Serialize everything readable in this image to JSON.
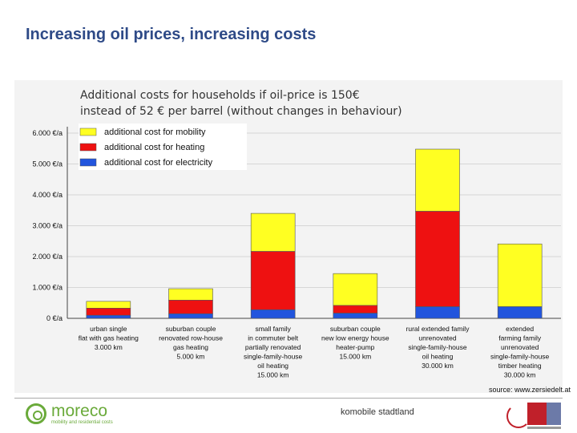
{
  "page": {
    "title": "Increasing oil prices, increasing costs",
    "source": "source: www.zersiedelt.at",
    "footer_center": "komobile stadtland",
    "logo_name": "moreco",
    "logo_tagline": "mobility and residential costs"
  },
  "chart_data": {
    "type": "bar",
    "stacked": true,
    "title_lines": [
      "Additional costs for households if oil-price is 150€",
      "instead of 52 € per barrel (without changes in behaviour)"
    ],
    "categories": [
      [
        "urban single",
        "flat with gas heating",
        "3.000 km"
      ],
      [
        "suburban couple",
        "renovated row-house",
        "gas heating",
        "5.000 km"
      ],
      [
        "small family",
        "in commuter belt",
        "partially renovated",
        "single-family-house",
        "oil heating",
        "15.000 km"
      ],
      [
        "suburban couple",
        "new low energy house",
        "heater-pump",
        "15.000 km"
      ],
      [
        "rural extended family",
        "unrenovated",
        "single-family-house",
        "oil heating",
        "30.000 km"
      ],
      [
        "extended",
        "farming family",
        "unrenovated",
        "single-family-house",
        "timber heating",
        "30.000 km"
      ]
    ],
    "series": [
      {
        "name": "additional cost for electricity",
        "color": "#2255dd",
        "values": [
          100,
          150,
          280,
          170,
          380,
          380
        ]
      },
      {
        "name": "additional cost for heating",
        "color": "#ee1111",
        "values": [
          230,
          440,
          1890,
          250,
          3090,
          0
        ]
      },
      {
        "name": "additional cost for mobility",
        "color": "#ffff22",
        "values": [
          220,
          370,
          1230,
          1030,
          2010,
          2030
        ]
      }
    ],
    "legend_order": [
      "additional cost for mobility",
      "additional cost for heating",
      "additional cost for electricity"
    ],
    "legend_position": "top-left",
    "yticks": [
      "0 €/a",
      "1.000 €/a",
      "2.000 €/a",
      "3.000 €/a",
      "4.000 €/a",
      "5.000 €/a",
      "6.000 €/a"
    ],
    "ylim": [
      0,
      6000
    ],
    "ystep": 1000,
    "grid": true
  }
}
